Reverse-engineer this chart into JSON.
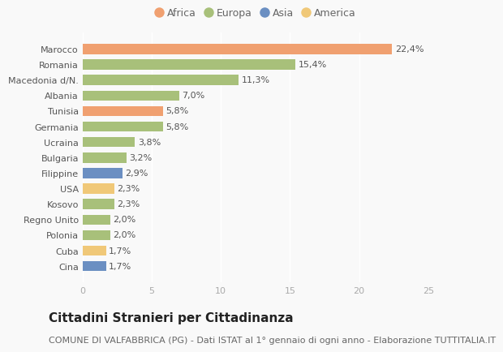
{
  "categories": [
    "Cina",
    "Cuba",
    "Polonia",
    "Regno Unito",
    "Kosovo",
    "USA",
    "Filippine",
    "Bulgaria",
    "Ucraina",
    "Germania",
    "Tunisia",
    "Albania",
    "Macedonia d/N.",
    "Romania",
    "Marocco"
  ],
  "values": [
    1.7,
    1.7,
    2.0,
    2.0,
    2.3,
    2.3,
    2.9,
    3.2,
    3.8,
    5.8,
    5.8,
    7.0,
    11.3,
    15.4,
    22.4
  ],
  "labels": [
    "1,7%",
    "1,7%",
    "2,0%",
    "2,0%",
    "2,3%",
    "2,3%",
    "2,9%",
    "3,2%",
    "3,8%",
    "5,8%",
    "5,8%",
    "7,0%",
    "11,3%",
    "15,4%",
    "22,4%"
  ],
  "colors": [
    "#6b8fc2",
    "#f0c878",
    "#a8c07a",
    "#a8c07a",
    "#a8c07a",
    "#f0c878",
    "#6b8fc2",
    "#a8c07a",
    "#a8c07a",
    "#a8c07a",
    "#f0a070",
    "#a8c07a",
    "#a8c07a",
    "#a8c07a",
    "#f0a070"
  ],
  "continents": [
    "Asia",
    "America",
    "Europa",
    "Europa",
    "Europa",
    "America",
    "Asia",
    "Europa",
    "Europa",
    "Europa",
    "Africa",
    "Europa",
    "Europa",
    "Europa",
    "Africa"
  ],
  "legend_labels": [
    "Africa",
    "Europa",
    "Asia",
    "America"
  ],
  "legend_colors": [
    "#f0a070",
    "#a8c07a",
    "#6b8fc2",
    "#f0c878"
  ],
  "title": "Cittadini Stranieri per Cittadinanza",
  "subtitle": "COMUNE DI VALFABBRICA (PG) - Dati ISTAT al 1° gennaio di ogni anno - Elaborazione TUTTITALIA.IT",
  "xlim": [
    0,
    25
  ],
  "xticks": [
    0,
    5,
    10,
    15,
    20,
    25
  ],
  "background_color": "#f9f9f9",
  "bar_height": 0.65,
  "title_fontsize": 11,
  "subtitle_fontsize": 8,
  "label_fontsize": 8,
  "ytick_fontsize": 8,
  "xtick_fontsize": 8,
  "legend_fontsize": 9
}
